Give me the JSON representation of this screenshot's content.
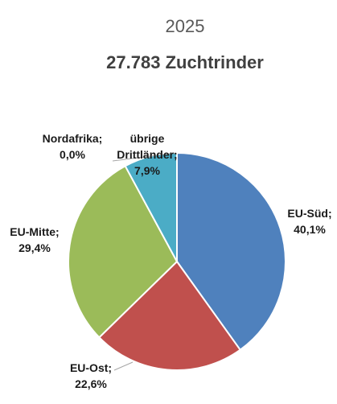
{
  "chart_data": {
    "type": "pie",
    "year": "2025",
    "title": "27.783 Zuchtrinder",
    "start_angle_deg": 0,
    "direction": "clockwise",
    "slices": [
      {
        "key": "eu_sued",
        "label_lines": [
          "EU-Süd;",
          "40,1%"
        ],
        "value": 40.1,
        "color": "#4f81bd"
      },
      {
        "key": "eu_ost",
        "label_lines": [
          "EU-Ost;",
          "22,6%"
        ],
        "value": 22.6,
        "color": "#c0504d"
      },
      {
        "key": "eu_mitte",
        "label_lines": [
          "EU-Mitte;",
          "29,4%"
        ],
        "value": 29.4,
        "color": "#9bbb59"
      },
      {
        "key": "nordafrika",
        "label_lines": [
          "Nordafrika;",
          "0,0%"
        ],
        "value": 0.0,
        "color": "#8064a2"
      },
      {
        "key": "uebrige_drittlaender",
        "label_lines": [
          "übrige",
          "Drittländer;",
          "7,9%"
        ],
        "value": 7.9,
        "color": "#4bacc6"
      }
    ]
  }
}
